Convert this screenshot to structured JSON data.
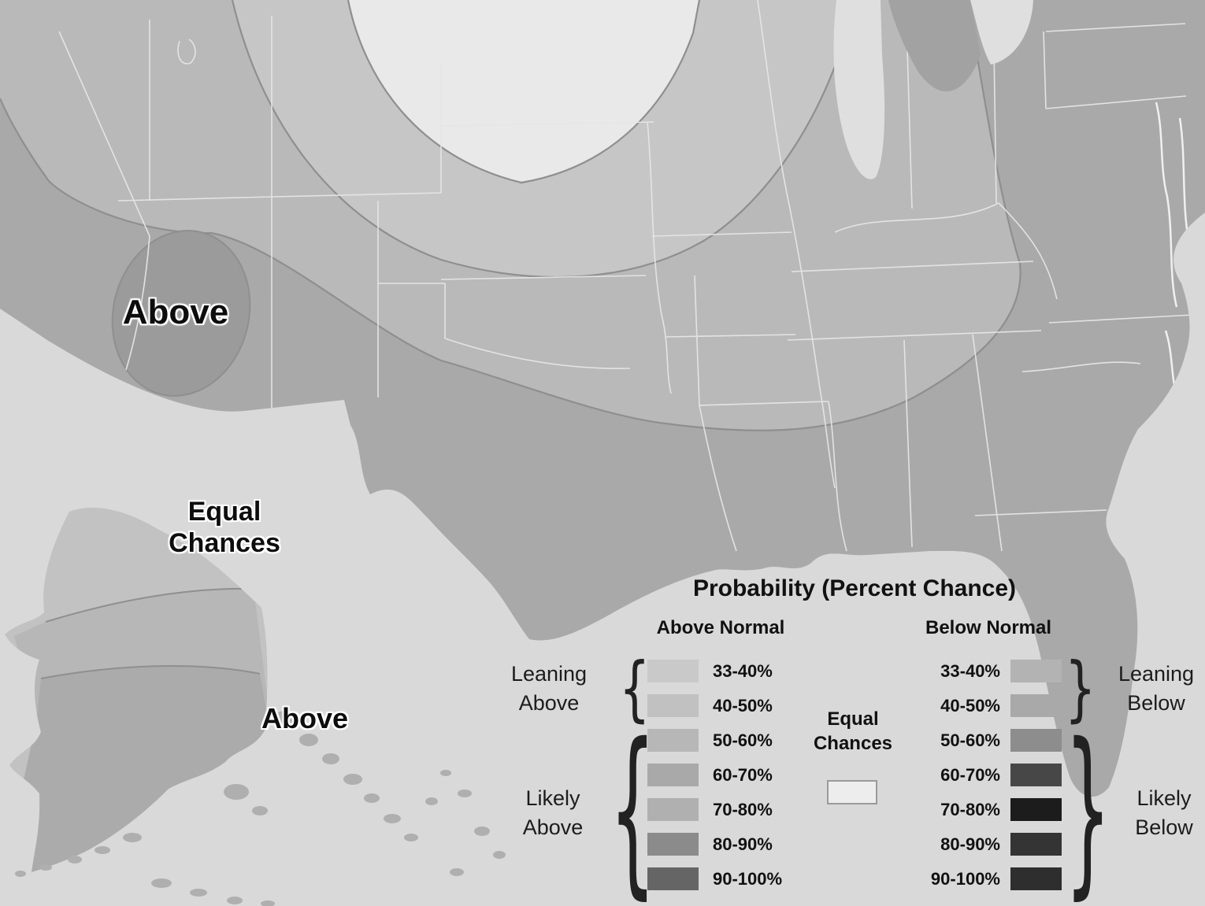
{
  "map": {
    "labels": [
      {
        "text": "Above",
        "region": "southwest-conus"
      },
      {
        "text": "Equal Chances",
        "region": "alaska-north"
      },
      {
        "text": "Above",
        "region": "alaska-south"
      }
    ],
    "colors": {
      "background": "#d9d9d9",
      "equal_chances_fill": "#e9e9e9",
      "band_light": "#c6c6c6",
      "band_mid": "#b9b9b9",
      "band_dark": "#a9a9a9",
      "bullseye": "#9b9b9b",
      "contour_line": "#8f8f8f",
      "state_line": "#e6e6e6",
      "lake_fill": "#dfdfdf",
      "canada_fill": "#a2a2a2",
      "island_fill": "#afafaf",
      "ak_north": "#c2c2c2",
      "ak_mid": "#b7b7b7",
      "ak_south": "#ababab",
      "coast_white": "#f0f0f0"
    }
  },
  "legend": {
    "title": "Probability (Percent Chance)",
    "above_header": "Above Normal",
    "below_header": "Below Normal",
    "equal_chances_label": "Equal Chances",
    "brace_open": "{",
    "brace_close": "}",
    "groups": {
      "leaning_above": "Leaning Above",
      "likely_above": "Likely Above",
      "leaning_below": "Leaning Below",
      "likely_below": "Likely Below"
    },
    "rows": [
      {
        "range": "33-40%",
        "above_color": "#c9c9c9",
        "below_color": "#b3b3b3"
      },
      {
        "range": "40-50%",
        "above_color": "#c1c1c1",
        "below_color": "#a9a9a9"
      },
      {
        "range": "50-60%",
        "above_color": "#b7b7b7",
        "below_color": "#8d8d8d"
      },
      {
        "range": "60-70%",
        "above_color": "#a9a9a9",
        "below_color": "#474747"
      },
      {
        "range": "70-80%",
        "above_color": "#b0b0b0",
        "below_color": "#1c1c1c"
      },
      {
        "range": "80-90%",
        "above_color": "#8b8b8b",
        "below_color": "#343434"
      },
      {
        "range": "90-100%",
        "above_color": "#656565",
        "below_color": "#2e2e2e"
      }
    ]
  }
}
